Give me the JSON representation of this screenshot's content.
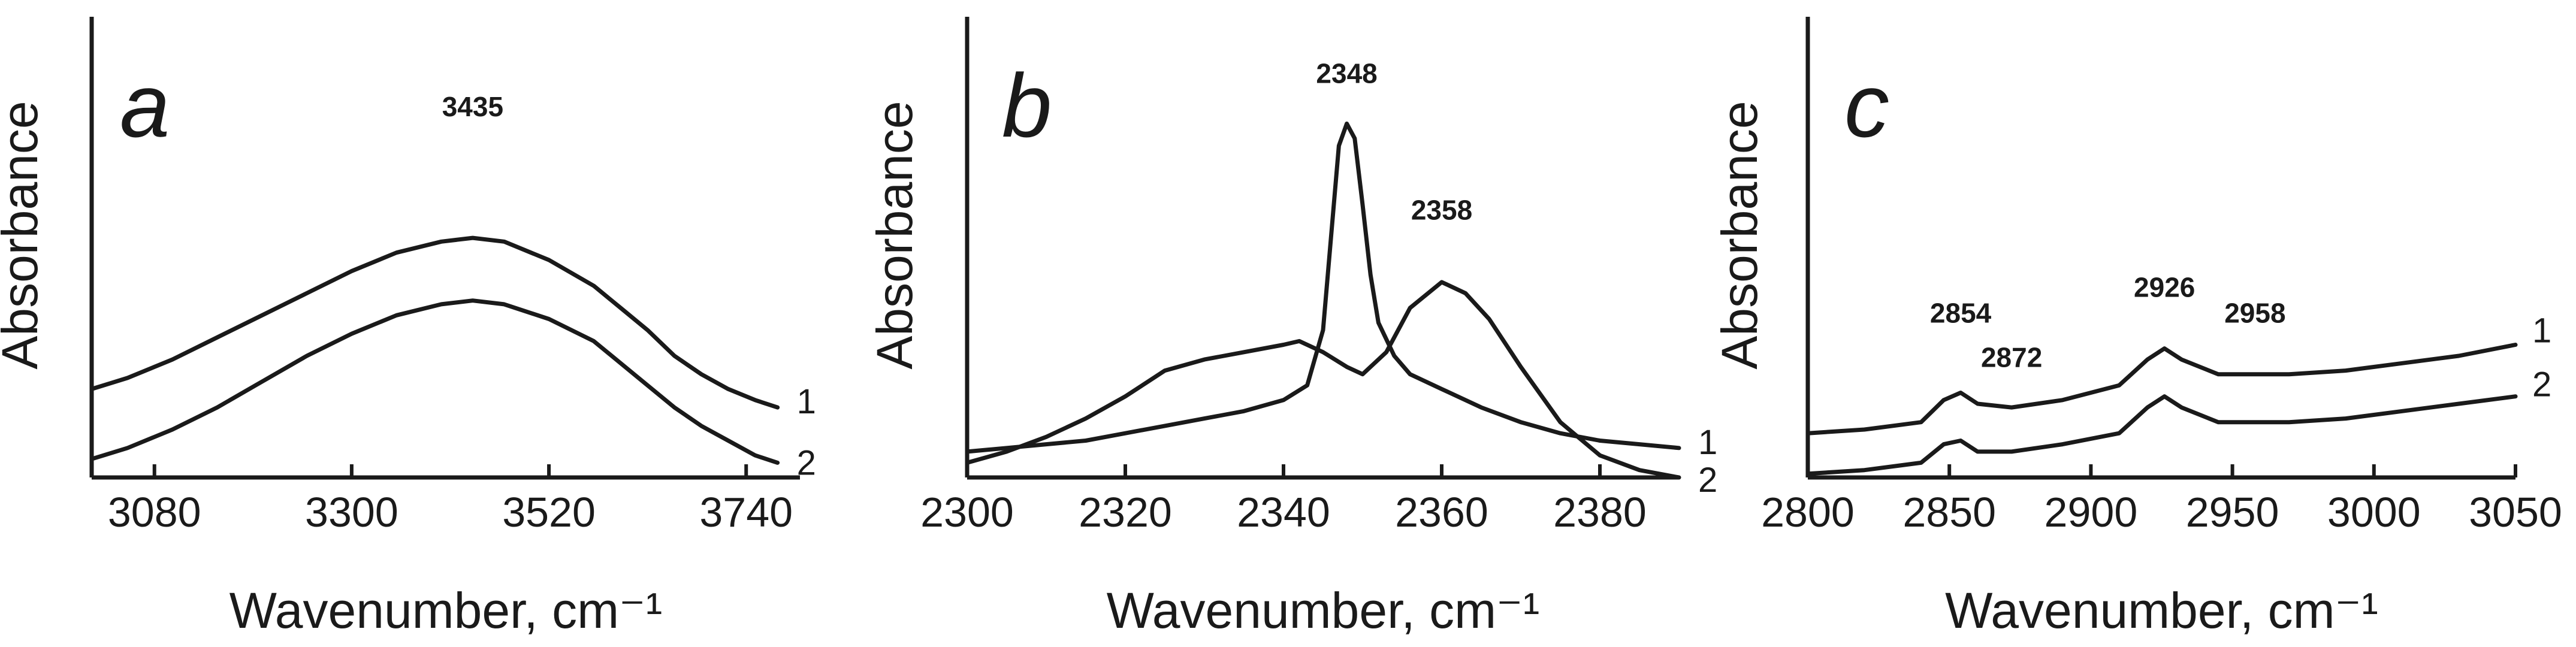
{
  "chart_data": [
    {
      "type": "line",
      "panel": "a",
      "xlabel": "Wavenumber, cm⁻¹",
      "ylabel": "Absorbance",
      "xlim": [
        3010,
        3800
      ],
      "ylim": [
        0,
        1.25
      ],
      "xticks": [
        3080,
        3300,
        3520,
        3740
      ],
      "tick_labels": [
        "3080",
        "3300",
        "3520",
        "3740"
      ],
      "annotations": [
        {
          "text": "3435",
          "x": 3435,
          "y": 0.98
        }
      ],
      "series": [
        {
          "name": "1",
          "x": [
            3010,
            3050,
            3100,
            3150,
            3200,
            3250,
            3300,
            3350,
            3400,
            3435,
            3470,
            3520,
            3570,
            3600,
            3630,
            3660,
            3690,
            3720,
            3750,
            3775
          ],
          "y": [
            0.24,
            0.27,
            0.32,
            0.38,
            0.44,
            0.5,
            0.56,
            0.61,
            0.64,
            0.65,
            0.64,
            0.59,
            0.52,
            0.46,
            0.4,
            0.33,
            0.28,
            0.24,
            0.21,
            0.19
          ]
        },
        {
          "name": "2",
          "x": [
            3010,
            3050,
            3100,
            3150,
            3200,
            3250,
            3300,
            3350,
            3400,
            3435,
            3470,
            3520,
            3570,
            3600,
            3630,
            3660,
            3690,
            3720,
            3750,
            3775
          ],
          "y": [
            0.05,
            0.08,
            0.13,
            0.19,
            0.26,
            0.33,
            0.39,
            0.44,
            0.47,
            0.48,
            0.47,
            0.43,
            0.37,
            0.31,
            0.25,
            0.19,
            0.14,
            0.1,
            0.06,
            0.04
          ]
        }
      ]
    },
    {
      "type": "line",
      "panel": "b",
      "xlabel": "Wavenumber, cm⁻¹",
      "ylabel": "Absorbance",
      "xlim": [
        2300,
        2390
      ],
      "ylim": [
        0,
        1.25
      ],
      "xticks": [
        2300,
        2320,
        2340,
        2360,
        2380
      ],
      "tick_labels": [
        "2300",
        "2320",
        "2340",
        "2360",
        "2380"
      ],
      "annotations": [
        {
          "text": "2348",
          "x": 2348,
          "y": 1.07
        },
        {
          "text": "2358",
          "x": 2360,
          "y": 0.7
        }
      ],
      "series": [
        {
          "name": "1",
          "x": [
            2300,
            2305,
            2310,
            2315,
            2320,
            2325,
            2330,
            2335,
            2340,
            2343,
            2345,
            2346,
            2347,
            2348,
            2349,
            2350,
            2351,
            2352,
            2354,
            2356,
            2360,
            2365,
            2370,
            2375,
            2380,
            2385,
            2390
          ],
          "y": [
            0.07,
            0.08,
            0.09,
            0.1,
            0.12,
            0.14,
            0.16,
            0.18,
            0.21,
            0.25,
            0.4,
            0.65,
            0.9,
            0.96,
            0.92,
            0.74,
            0.55,
            0.42,
            0.33,
            0.28,
            0.24,
            0.19,
            0.15,
            0.12,
            0.1,
            0.09,
            0.08
          ]
        },
        {
          "name": "2",
          "x": [
            2300,
            2305,
            2310,
            2315,
            2320,
            2325,
            2330,
            2335,
            2340,
            2342,
            2345,
            2348,
            2350,
            2353,
            2356,
            2360,
            2363,
            2366,
            2370,
            2375,
            2380,
            2385,
            2390
          ],
          "y": [
            0.04,
            0.07,
            0.11,
            0.16,
            0.22,
            0.29,
            0.32,
            0.34,
            0.36,
            0.37,
            0.34,
            0.3,
            0.28,
            0.34,
            0.46,
            0.53,
            0.5,
            0.43,
            0.3,
            0.15,
            0.06,
            0.02,
            0.0
          ]
        }
      ]
    },
    {
      "type": "line",
      "panel": "c",
      "xlabel": "Wavenumber, cm⁻¹",
      "ylabel": "Absorbance",
      "xlim": [
        2800,
        3050
      ],
      "ylim": [
        0,
        1.25
      ],
      "xticks": [
        2800,
        2850,
        2900,
        2950,
        3000,
        3050
      ],
      "tick_labels": [
        "2800",
        "2850",
        "2900",
        "2950",
        "3000",
        "3050"
      ],
      "annotations": [
        {
          "text": "2854",
          "x": 2854,
          "y": 0.42
        },
        {
          "text": "2872",
          "x": 2872,
          "y": 0.3
        },
        {
          "text": "2926",
          "x": 2926,
          "y": 0.49
        },
        {
          "text": "2958",
          "x": 2958,
          "y": 0.42
        }
      ],
      "series": [
        {
          "name": "1",
          "x": [
            2800,
            2820,
            2840,
            2848,
            2854,
            2860,
            2872,
            2890,
            2910,
            2920,
            2926,
            2932,
            2945,
            2958,
            2970,
            2990,
            3010,
            3030,
            3050
          ],
          "y": [
            0.12,
            0.13,
            0.15,
            0.21,
            0.23,
            0.2,
            0.19,
            0.21,
            0.25,
            0.32,
            0.35,
            0.32,
            0.28,
            0.28,
            0.28,
            0.29,
            0.31,
            0.33,
            0.36
          ]
        },
        {
          "name": "2",
          "x": [
            2800,
            2820,
            2840,
            2848,
            2854,
            2860,
            2872,
            2890,
            2910,
            2920,
            2926,
            2932,
            2945,
            2958,
            2970,
            2990,
            3010,
            3030,
            3050
          ],
          "y": [
            0.01,
            0.02,
            0.04,
            0.09,
            0.1,
            0.07,
            0.07,
            0.09,
            0.12,
            0.19,
            0.22,
            0.19,
            0.15,
            0.15,
            0.15,
            0.16,
            0.18,
            0.2,
            0.22
          ]
        }
      ]
    }
  ]
}
